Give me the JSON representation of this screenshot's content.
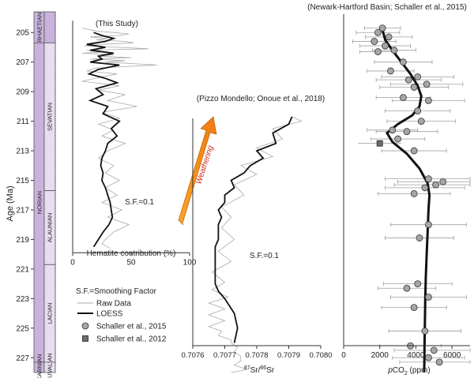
{
  "colors": {
    "stage_fill": "#c9b3dc",
    "substage_fill": "#e7def0",
    "raw": "#a9a9a9",
    "loess": "#111111",
    "marker_2015": "#a6a6a6",
    "marker_2012": "#6e6e6e",
    "arrow_start": "#f5a623",
    "arrow_end": "#f07b12",
    "weathering_text": "#d0281c"
  },
  "age_axis": {
    "label": "Age (Ma)",
    "ticks": [
      205,
      207,
      209,
      211,
      213,
      215,
      217,
      219,
      221,
      223,
      225,
      227
    ],
    "min": 203.6,
    "max": 228.0
  },
  "stratigraphy": {
    "stages": [
      {
        "label": "RHAETIAN",
        "from": 203.6,
        "to": 205.7
      },
      {
        "label": "NORIAN",
        "from": 205.7,
        "to": 227.3
      },
      {
        "label": "CARNIAN",
        "from": 227.3,
        "to": 228.0
      }
    ],
    "substages": [
      {
        "label": "SEVATIAN",
        "from": 205.7,
        "to": 215.7
      },
      {
        "label": "ALAUNIAN",
        "from": 215.7,
        "to": 220.7
      },
      {
        "label": "LACIAN",
        "from": 220.7,
        "to": 227.3
      },
      {
        "label": "TUVALIAN",
        "from": 227.3,
        "to": 228.0
      }
    ]
  },
  "weathering_label": "Weathering",
  "legend": {
    "title": "S.F.=Smoothing Factor",
    "items": [
      {
        "label": "Raw Data",
        "symbol": "raw-line"
      },
      {
        "label": "LOESS",
        "symbol": "loess-line"
      },
      {
        "label": "Schaller et al., 2015",
        "symbol": "circle"
      },
      {
        "label": "Schaller et al., 2012",
        "symbol": "square"
      }
    ]
  },
  "chart_data": [
    {
      "type": "line",
      "title": "(This Study)",
      "xlabel": "Hematite contribution (%)",
      "xlim": [
        0,
        100
      ],
      "xticks": [
        0,
        50,
        100
      ],
      "annotation": "S.F.=0.1",
      "series": [
        {
          "name": "Raw Data",
          "x": [
            8,
            20,
            35,
            48,
            40,
            15,
            30,
            20,
            45,
            52,
            25,
            10,
            40,
            65,
            12,
            30,
            8,
            35,
            22,
            50,
            15,
            45,
            28,
            72,
            20,
            12,
            38,
            25,
            8,
            40,
            22,
            45,
            30,
            55,
            25,
            40,
            22,
            35,
            25,
            45,
            30,
            22,
            35,
            28,
            40,
            28,
            38,
            25,
            42,
            30,
            48,
            35,
            28,
            25,
            32
          ],
          "y": [
            204.7,
            204.9,
            205.0,
            205.1,
            205.2,
            205.3,
            205.4,
            205.5,
            205.6,
            205.7,
            205.8,
            205.9,
            206.0,
            206.1,
            206.2,
            206.3,
            206.4,
            206.5,
            206.6,
            206.7,
            206.8,
            206.9,
            207.0,
            207.2,
            207.4,
            207.6,
            207.8,
            208.0,
            208.3,
            208.6,
            208.9,
            209.2,
            209.6,
            210.0,
            210.4,
            210.8,
            211.2,
            211.6,
            212.0,
            212.5,
            213.0,
            213.5,
            214.0,
            214.5,
            215.0,
            215.5,
            216.0,
            216.5,
            217.0,
            217.5,
            218.0,
            218.5,
            219.0,
            219.3,
            219.6
          ]
        },
        {
          "name": "LOESS",
          "x": [
            18,
            25,
            35,
            28,
            12,
            28,
            15,
            35,
            22,
            25,
            15,
            40,
            22,
            14,
            28,
            38,
            20,
            26,
            15,
            30,
            26,
            40,
            33,
            38,
            30,
            28,
            25,
            24,
            26,
            25,
            28,
            30,
            32,
            33,
            34,
            31,
            26,
            22,
            18
          ],
          "y": [
            205.0,
            205.2,
            205.4,
            205.6,
            205.8,
            206.0,
            206.2,
            206.4,
            206.6,
            206.8,
            207.0,
            207.2,
            207.5,
            207.8,
            208.1,
            208.4,
            208.8,
            209.2,
            209.6,
            210.0,
            210.5,
            211.0,
            211.5,
            212.0,
            212.5,
            213.0,
            213.5,
            214.0,
            214.5,
            215.0,
            215.5,
            216.0,
            216.5,
            217.0,
            217.5,
            218.0,
            218.5,
            219.0,
            219.5
          ]
        }
      ]
    },
    {
      "type": "line",
      "title": "(Pizzo Mondello; Onoue et al., 2018)",
      "xlabel": "87Sr/86Sr",
      "xlim": [
        0.7076,
        0.708
      ],
      "xticks": [
        "0.7076",
        "0.7077",
        "0.7078",
        "0.7079",
        "0.7080"
      ],
      "annotation": "S.F.=0.1",
      "series": [
        {
          "name": "Raw Data",
          "x": [
            0.70791,
            0.70794,
            0.70785,
            0.70788,
            0.7078,
            0.70785,
            0.70775,
            0.7078,
            0.70773,
            0.70776,
            0.70769,
            0.70772,
            0.70769,
            0.70773,
            0.70768,
            0.70772,
            0.70766,
            0.7077,
            0.70766,
            0.70771,
            0.70765,
            0.7077,
            0.70765,
            0.7077,
            0.70765,
            0.70769,
            0.70768,
            0.70772,
            0.70772,
            0.70774,
            0.70773,
            0.70775,
            0.70775,
            0.70773,
            0.70777,
            0.70772
          ],
          "y": [
            210.7,
            211.0,
            211.5,
            212.2,
            212.8,
            213.4,
            214.0,
            214.6,
            215.3,
            216.0,
            216.8,
            217.5,
            218.2,
            219.0,
            219.8,
            220.5,
            221.2,
            221.9,
            222.4,
            222.9,
            223.3,
            223.7,
            224.1,
            224.5,
            224.9,
            225.2,
            225.5,
            225.8,
            226.0,
            226.3,
            226.6,
            226.9,
            227.2,
            227.5,
            227.8,
            228.0
          ]
        },
        {
          "name": "LOESS",
          "x": [
            0.70791,
            0.7079,
            0.70785,
            0.70786,
            0.7078,
            0.70782,
            0.70778,
            0.70776,
            0.70772,
            0.70773,
            0.7077,
            0.7077,
            0.70768,
            0.70769,
            0.70768,
            0.70768,
            0.70768,
            0.70767,
            0.70767,
            0.70767,
            0.70767,
            0.70767,
            0.70767,
            0.70768,
            0.7077,
            0.70773,
            0.70774,
            0.70773
          ],
          "y": [
            210.7,
            211.2,
            211.8,
            212.5,
            213.0,
            213.5,
            214.0,
            214.5,
            215.0,
            215.5,
            216.0,
            216.5,
            217.0,
            217.5,
            218.0,
            218.5,
            219.0,
            219.5,
            220.0,
            220.5,
            221.0,
            221.5,
            222.0,
            222.5,
            223.0,
            224.0,
            225.0,
            226.0
          ]
        }
      ]
    },
    {
      "type": "scatter",
      "title": "(Newark-Hartford Basin; Schaller et al., 2015)",
      "xlabel": "pCO2 (ppm)",
      "xlim": [
        0,
        7000
      ],
      "xticks": [
        0,
        2000,
        4000,
        6000
      ],
      "series": [
        {
          "name": "Schaller et al., 2015",
          "points": [
            {
              "y": 204.7,
              "x": 2150,
              "err": 1000
            },
            {
              "y": 205.0,
              "x": 1900,
              "err": 1200
            },
            {
              "y": 205.3,
              "x": 2500,
              "err": 1300
            },
            {
              "y": 205.6,
              "x": 1700,
              "err": 1200
            },
            {
              "y": 205.9,
              "x": 2300,
              "err": 1400
            },
            {
              "y": 206.2,
              "x": 2800,
              "err": 1200
            },
            {
              "y": 206.3,
              "x": 1900,
              "err": 1000
            },
            {
              "y": 207.0,
              "x": 3300,
              "err": 1600
            },
            {
              "y": 207.6,
              "x": 2600,
              "err": 1300
            },
            {
              "y": 208.0,
              "x": 4100,
              "err": 2000
            },
            {
              "y": 208.2,
              "x": 3600,
              "err": 1800
            },
            {
              "y": 208.5,
              "x": 4600,
              "err": 2000
            },
            {
              "y": 208.7,
              "x": 3900,
              "err": 1900
            },
            {
              "y": 209.4,
              "x": 3300,
              "err": 1500
            },
            {
              "y": 209.6,
              "x": 4700,
              "err": 2000
            },
            {
              "y": 210.3,
              "x": 4100,
              "err": 1800
            },
            {
              "y": 211.0,
              "x": 4300,
              "err": 1900
            },
            {
              "y": 211.6,
              "x": 2700,
              "err": 1400
            },
            {
              "y": 211.7,
              "x": 3500,
              "err": 1700
            },
            {
              "y": 212.2,
              "x": 3000,
              "err": 1500
            },
            {
              "y": 213.0,
              "x": 3900,
              "err": 1800
            },
            {
              "y": 214.9,
              "x": 4700,
              "err": 2400
            },
            {
              "y": 215.1,
              "x": 5500,
              "err": 2500
            },
            {
              "y": 215.3,
              "x": 5100,
              "err": 2300
            },
            {
              "y": 215.5,
              "x": 4500,
              "err": 2200
            },
            {
              "y": 215.9,
              "x": 3900,
              "err": 2000
            },
            {
              "y": 218.0,
              "x": 4700,
              "err": 2100
            },
            {
              "y": 218.9,
              "x": 4200,
              "err": 1900
            },
            {
              "y": 222.0,
              "x": 4100,
              "err": 1900
            },
            {
              "y": 222.3,
              "x": 3500,
              "err": 1600
            },
            {
              "y": 222.9,
              "x": 4700,
              "err": 2100
            },
            {
              "y": 223.6,
              "x": 3900,
              "err": 1800
            },
            {
              "y": 225.2,
              "x": 4500,
              "err": 2000
            },
            {
              "y": 226.2,
              "x": 3700,
              "err": 1700
            },
            {
              "y": 226.5,
              "x": 5000,
              "err": 2200
            },
            {
              "y": 227.0,
              "x": 4700,
              "err": 2000
            },
            {
              "y": 227.3,
              "x": 5300,
              "err": 2200
            }
          ]
        },
        {
          "name": "Schaller et al., 2012",
          "points": [
            {
              "y": 212.5,
              "x": 2000,
              "err": 1200
            }
          ]
        },
        {
          "name": "LOESS",
          "x": [
            2150,
            2300,
            2700,
            3200,
            3700,
            4100,
            4300,
            4200,
            3800,
            3000,
            2400,
            2700,
            3500,
            4200,
            4650,
            4750,
            4700,
            4650,
            4600,
            4550,
            4520,
            4500,
            4480,
            4470,
            4460
          ],
          "y": [
            204.8,
            205.5,
            206.2,
            207.0,
            207.8,
            208.6,
            209.3,
            210.0,
            210.6,
            211.2,
            211.8,
            212.4,
            213.2,
            214.2,
            215.2,
            216.0,
            217.0,
            218.5,
            220.0,
            221.5,
            223.0,
            224.5,
            226.0,
            227.2,
            228.0
          ]
        }
      ]
    }
  ]
}
